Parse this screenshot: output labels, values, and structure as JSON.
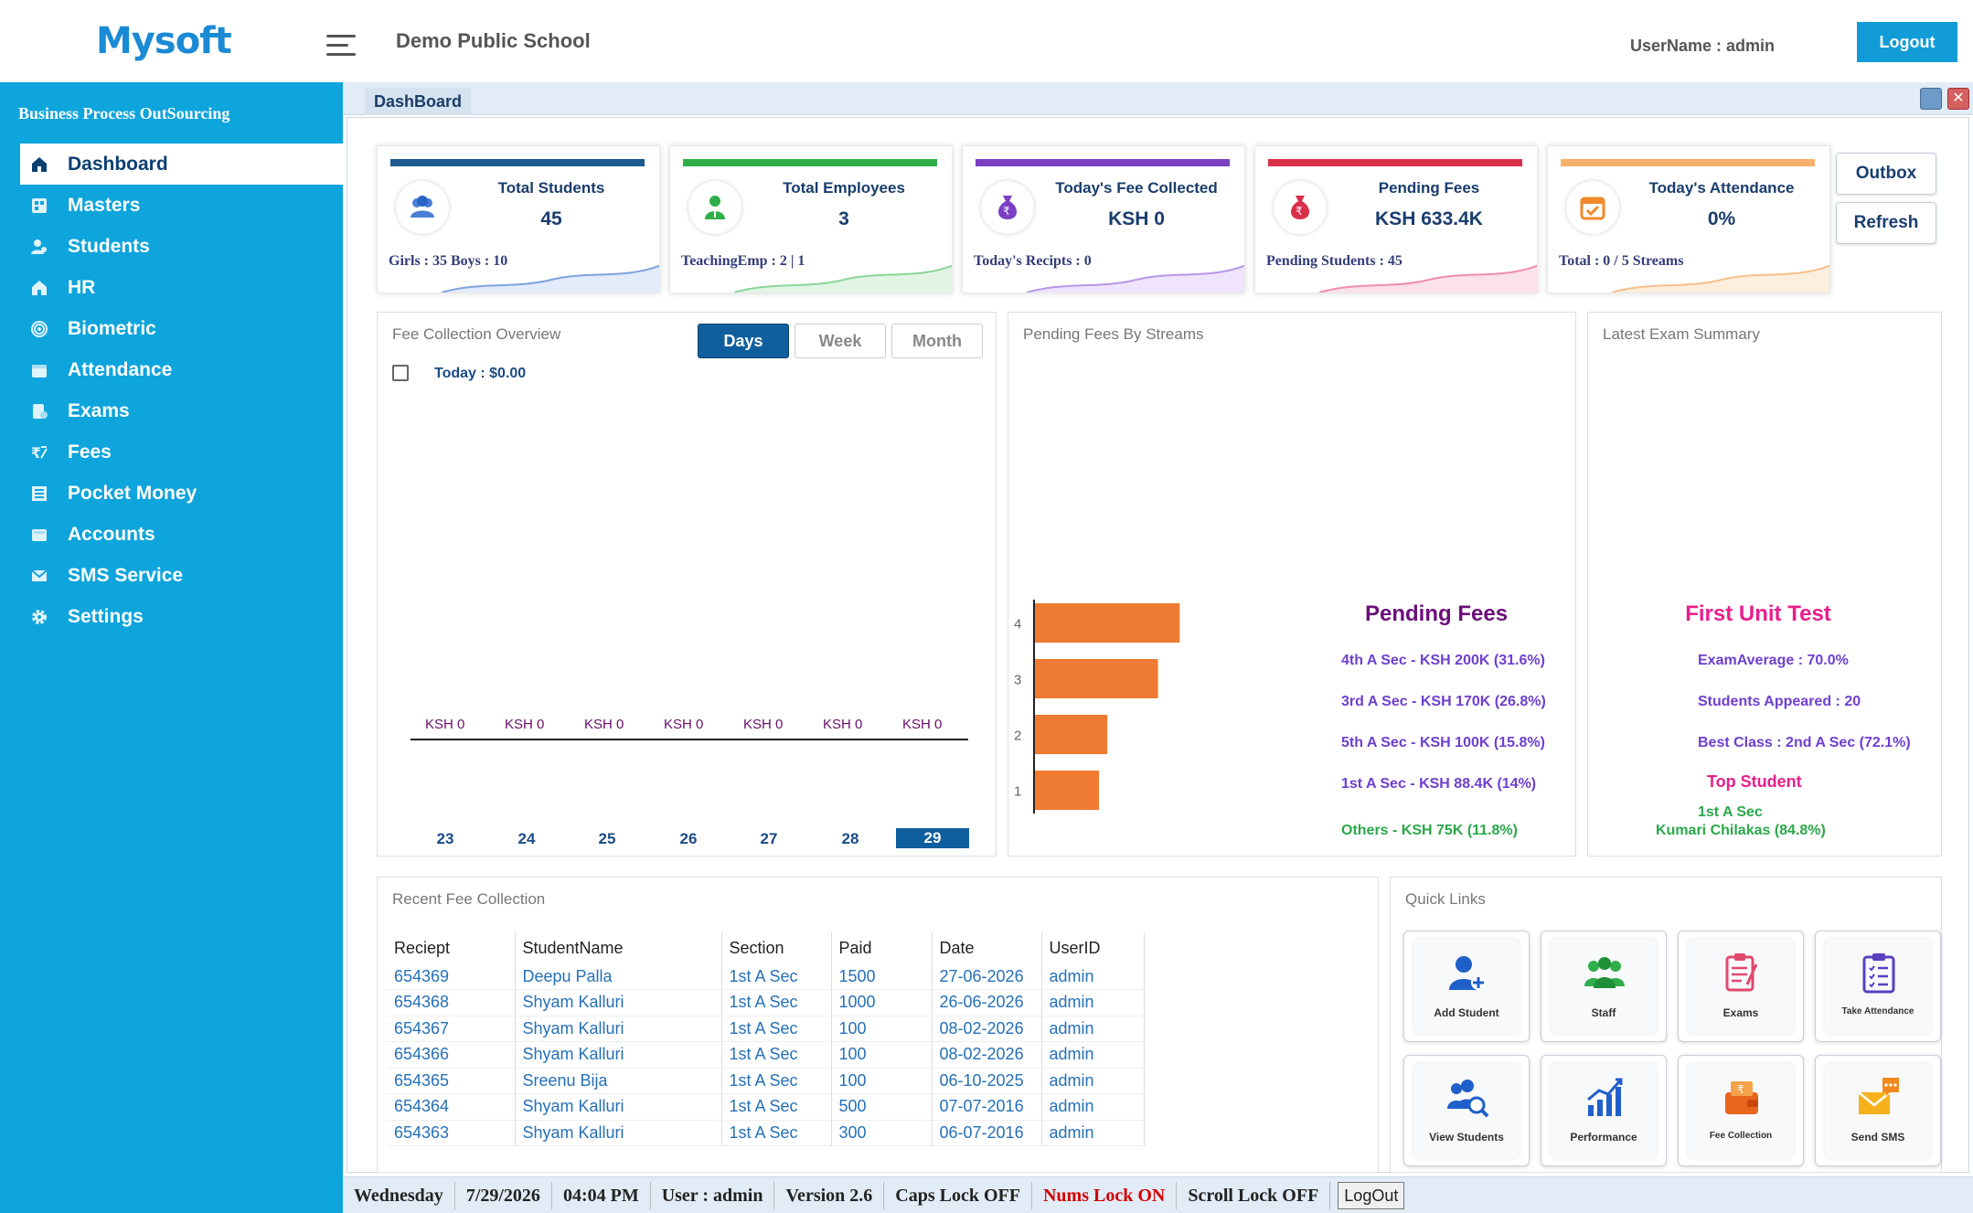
{
  "header": {
    "logo": "Mysoft",
    "school": "Demo Public School",
    "username": "UserName : admin",
    "logout": "Logout"
  },
  "sidebar": {
    "title": "Business Process OutSourcing",
    "items": [
      {
        "label": "Dashboard",
        "icon": "home-icon"
      },
      {
        "label": "Masters",
        "icon": "grid-icon"
      },
      {
        "label": "Students",
        "icon": "users-icon"
      },
      {
        "label": "HR",
        "icon": "home-icon"
      },
      {
        "label": "Biometric",
        "icon": "fingerprint-icon"
      },
      {
        "label": "Attendance",
        "icon": "calendar-icon"
      },
      {
        "label": "Exams",
        "icon": "exam-icon"
      },
      {
        "label": "Fees",
        "icon": "rupee-icon"
      },
      {
        "label": "Pocket Money",
        "icon": "register-icon"
      },
      {
        "label": "Accounts",
        "icon": "wallet-icon"
      },
      {
        "label": "SMS Service",
        "icon": "envelope-icon"
      },
      {
        "label": "Settings",
        "icon": "gear-icon"
      }
    ]
  },
  "tab": {
    "title": "DashBoard"
  },
  "cards": [
    {
      "label": "Total Students",
      "value": "45",
      "sub": "Girls : 35   Boys : 10",
      "color": "#1d5a8f"
    },
    {
      "label": "Total Employees",
      "value": "3",
      "sub": "TeachingEmp : 2   |   1",
      "color": "#2fae4a"
    },
    {
      "label": "Today's Fee Collected",
      "value": "KSH 0",
      "sub": "Today's Recipts : 0",
      "color": "#7b3fc4"
    },
    {
      "label": "Pending Fees",
      "value": "KSH 633.4K",
      "sub": "Pending Students : 45",
      "color": "#d9304a"
    },
    {
      "label": "Today's Attendance",
      "value": "0%",
      "sub": "Total : 0 / 5 Streams",
      "color": "#f7b06a"
    }
  ],
  "side_buttons": {
    "outbox": "Outbox",
    "refresh": "Refresh"
  },
  "fee_overview": {
    "title": "Fee Collection Overview",
    "segments": [
      "Days",
      "Week",
      "Month"
    ],
    "today": "Today : $0.00",
    "fee_labels": [
      "KSH 0",
      "KSH 0",
      "KSH 0",
      "KSH 0",
      "KSH 0",
      "KSH 0",
      "KSH 0"
    ],
    "days": [
      "23",
      "24",
      "25",
      "26",
      "27",
      "28",
      "29"
    ]
  },
  "pending_streams": {
    "title": "Pending Fees By Streams",
    "heading": "Pending Fees",
    "lines": [
      "4th A Sec - KSH 200K (31.6%)",
      "3rd A Sec - KSH 170K (26.8%)",
      "5th A Sec - KSH 100K (15.8%)",
      "1st A Sec - KSH 88.4K (14%)",
      "Others - KSH 75K (11.8%)"
    ]
  },
  "chart_data": {
    "type": "bar",
    "orientation": "horizontal",
    "categories": [
      "4",
      "3",
      "2",
      "1"
    ],
    "values": [
      200,
      170,
      100,
      88.4
    ],
    "xlim": [
      0,
      240
    ]
  },
  "exam_summary": {
    "title": "Latest Exam Summary",
    "heading": "First Unit Test",
    "average": "ExamAverage : 70.0%",
    "appeared": "Students Appeared : 20",
    "best": "Best Class : 2nd A Sec (72.1%)",
    "top_label": "Top Student",
    "top_class": "1st A Sec",
    "top_name": "Kumari Chilakas (84.8%)"
  },
  "recent_fee": {
    "title": "Recent Fee Collection",
    "columns": [
      "Reciept",
      "StudentName",
      "Section",
      "Paid",
      "Date",
      "UserID"
    ],
    "rows": [
      [
        "654369",
        "Deepu Palla",
        "1st A Sec",
        "1500",
        "27-06-2026",
        "admin"
      ],
      [
        "654368",
        "Shyam Kalluri",
        "1st A Sec",
        "1000",
        "26-06-2026",
        "admin"
      ],
      [
        "654367",
        "Shyam Kalluri",
        "1st A Sec",
        "100",
        "08-02-2026",
        "admin"
      ],
      [
        "654366",
        "Shyam Kalluri",
        "1st A Sec",
        "100",
        "08-02-2026",
        "admin"
      ],
      [
        "654365",
        "Sreenu Bija",
        "1st A Sec",
        "100",
        "06-10-2025",
        "admin"
      ],
      [
        "654364",
        "Shyam Kalluri",
        "1st A Sec",
        "500",
        "07-07-2016",
        "admin"
      ],
      [
        "654363",
        "Shyam Kalluri",
        "1st A Sec",
        "300",
        "06-07-2016",
        "admin"
      ]
    ]
  },
  "quick_links": {
    "title": "Quick Links",
    "items": [
      {
        "label": "Add Student",
        "icon": "add-student-icon"
      },
      {
        "label": "Staff",
        "icon": "staff-icon"
      },
      {
        "label": "Exams",
        "icon": "exams-icon"
      },
      {
        "label": "Take Attendance",
        "icon": "attendance-icon"
      },
      {
        "label": "View Students",
        "icon": "view-students-icon"
      },
      {
        "label": "Performance",
        "icon": "performance-icon"
      },
      {
        "label": "Fee Collection",
        "icon": "fee-collection-icon"
      },
      {
        "label": "Send SMS",
        "icon": "send-sms-icon"
      }
    ]
  },
  "status": {
    "day": "Wednesday",
    "date": "7/29/2026",
    "time": "04:04 PM",
    "user": "User : admin",
    "version": "Version 2.6",
    "caps": "Caps Lock OFF",
    "nums": "Nums Lock ON",
    "scroll": "Scroll Lock OFF",
    "logout": "LogOut"
  }
}
